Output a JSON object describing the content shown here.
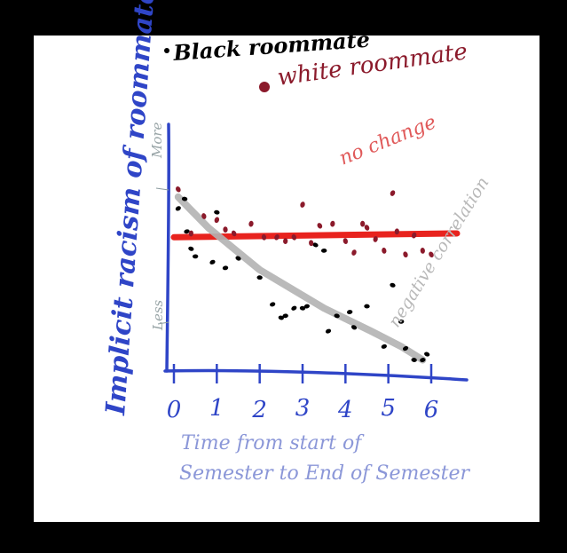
{
  "chart_data": {
    "type": "scatter",
    "title": "",
    "xlabel": "Time from start of Semester to End of Semester",
    "ylabel": "Implicit racism of roommate",
    "y_tick_labels": [
      "More",
      "Less"
    ],
    "x_ticks": [
      "0",
      "1",
      "2",
      "3",
      "4",
      "5",
      "6"
    ],
    "xlim": [
      0,
      6
    ],
    "ylim": [
      0,
      10
    ],
    "grid": false,
    "legend_position": "top",
    "series": [
      {
        "name": "Black roommate",
        "color": "#000000",
        "x": [
          0.1,
          0.25,
          0.3,
          0.4,
          0.5,
          0.9,
          1.0,
          1.2,
          1.5,
          2.0,
          2.3,
          2.5,
          2.6,
          2.8,
          3.0,
          3.1,
          3.3,
          3.5,
          3.6,
          3.8,
          4.1,
          4.2,
          4.5,
          4.9,
          5.1,
          5.3,
          5.4,
          5.6,
          5.8,
          5.9
        ],
        "y": [
          8.2,
          8.7,
          7.0,
          6.1,
          5.7,
          5.4,
          8.0,
          5.1,
          5.6,
          4.6,
          3.2,
          2.5,
          2.6,
          3.0,
          3.0,
          3.1,
          6.3,
          6.0,
          1.8,
          2.6,
          2.8,
          2.0,
          3.1,
          1.0,
          4.2,
          2.3,
          0.9,
          0.3,
          0.3,
          0.6
        ]
      },
      {
        "name": "white roommate",
        "color": "#8b1a2b",
        "x": [
          0.1,
          0.4,
          0.7,
          1.0,
          1.2,
          1.4,
          1.8,
          2.1,
          2.4,
          2.6,
          2.8,
          3.0,
          3.2,
          3.4,
          3.7,
          4.0,
          4.2,
          4.4,
          4.5,
          4.7,
          4.9,
          5.1,
          5.2,
          5.4,
          5.6,
          5.8,
          6.0
        ],
        "y": [
          9.2,
          6.9,
          7.8,
          7.6,
          7.1,
          6.9,
          7.4,
          6.7,
          6.7,
          6.5,
          6.7,
          8.4,
          6.4,
          7.3,
          7.4,
          6.5,
          5.9,
          7.4,
          7.2,
          6.6,
          6.0,
          9.0,
          7.0,
          5.8,
          6.8,
          6.0,
          5.8
        ]
      }
    ],
    "annotations": [
      {
        "text": "no change",
        "color": "#e05a5a"
      },
      {
        "text": "negative correlation",
        "color": "#b8b8b8"
      }
    ],
    "trend_lines": [
      {
        "label": "no change",
        "color": "#e8231e",
        "points": [
          [
            0,
            6.7
          ],
          [
            6.6,
            6.9
          ]
        ]
      },
      {
        "label": "negative correlation",
        "color": "#b3b3b3",
        "points": [
          [
            0.1,
            8.8
          ],
          [
            0.8,
            7.2
          ],
          [
            2.0,
            5.0
          ],
          [
            3.5,
            3.0
          ],
          [
            4.6,
            1.8
          ],
          [
            5.3,
            1.0
          ],
          [
            5.8,
            0.3
          ]
        ]
      }
    ]
  }
}
